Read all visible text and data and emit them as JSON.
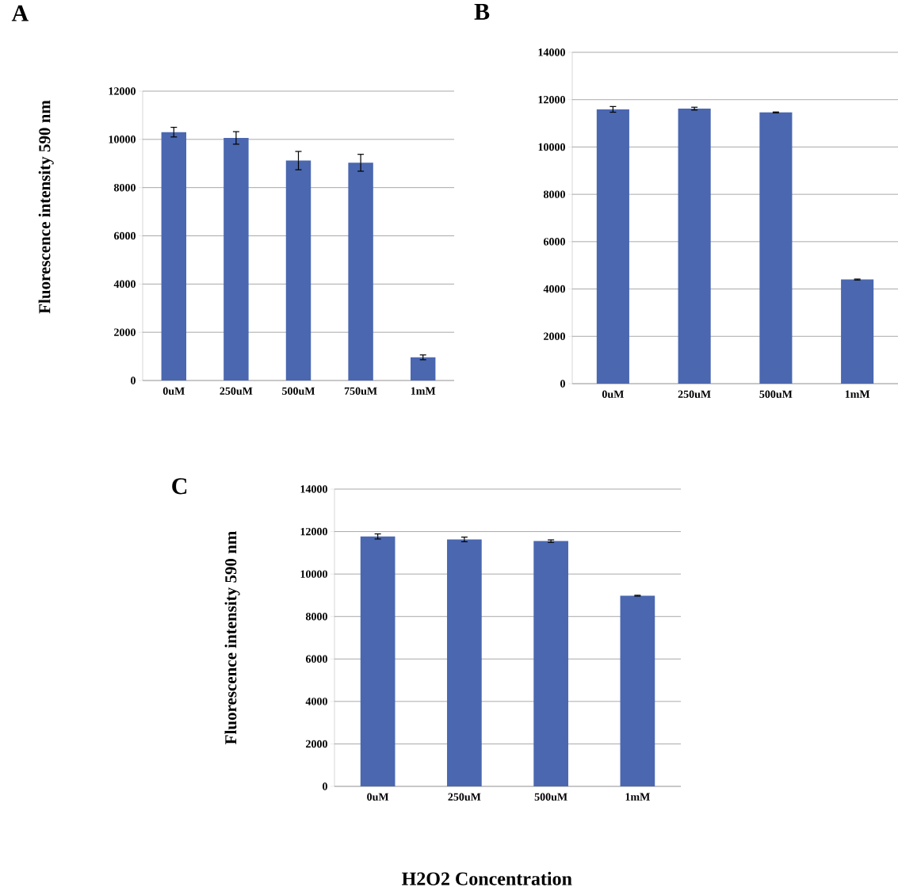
{
  "chart_data": [
    {
      "type": "bar",
      "title": "A",
      "ylabel": "Fluorescence intensity 590 nm",
      "categories": [
        "0uM",
        "250uM",
        "500uM",
        "750uM",
        "1mM"
      ],
      "values": [
        10300,
        10060,
        9120,
        9030,
        960
      ],
      "errors": [
        200,
        260,
        380,
        350,
        100
      ],
      "color": "#4a67b0",
      "ylim": [
        0,
        12000
      ],
      "yticks": [
        0,
        2000,
        4000,
        6000,
        8000,
        10000,
        12000
      ],
      "grid": "y"
    },
    {
      "type": "bar",
      "title": "B",
      "categories": [
        "0uM",
        "250uM",
        "500uM",
        "1mM"
      ],
      "values": [
        11590,
        11620,
        11460,
        4400
      ],
      "errors": [
        120,
        60,
        20,
        20
      ],
      "color": "#4a67b0",
      "ylim": [
        0,
        14000
      ],
      "yticks": [
        0,
        2000,
        4000,
        6000,
        8000,
        10000,
        12000,
        14000
      ],
      "grid": "y"
    },
    {
      "type": "bar",
      "title": "C",
      "ylabel": "Fluorescence intensity 590 nm",
      "xlabel": "H2O2 Concentration",
      "categories": [
        "0uM",
        "250uM",
        "500uM",
        "1mM"
      ],
      "values": [
        11770,
        11630,
        11550,
        8980
      ],
      "errors": [
        120,
        110,
        60,
        20
      ],
      "color": "#4a67b0",
      "ylim": [
        0,
        14000
      ],
      "yticks": [
        0,
        2000,
        4000,
        6000,
        8000,
        10000,
        12000,
        14000
      ],
      "grid": "y"
    }
  ]
}
